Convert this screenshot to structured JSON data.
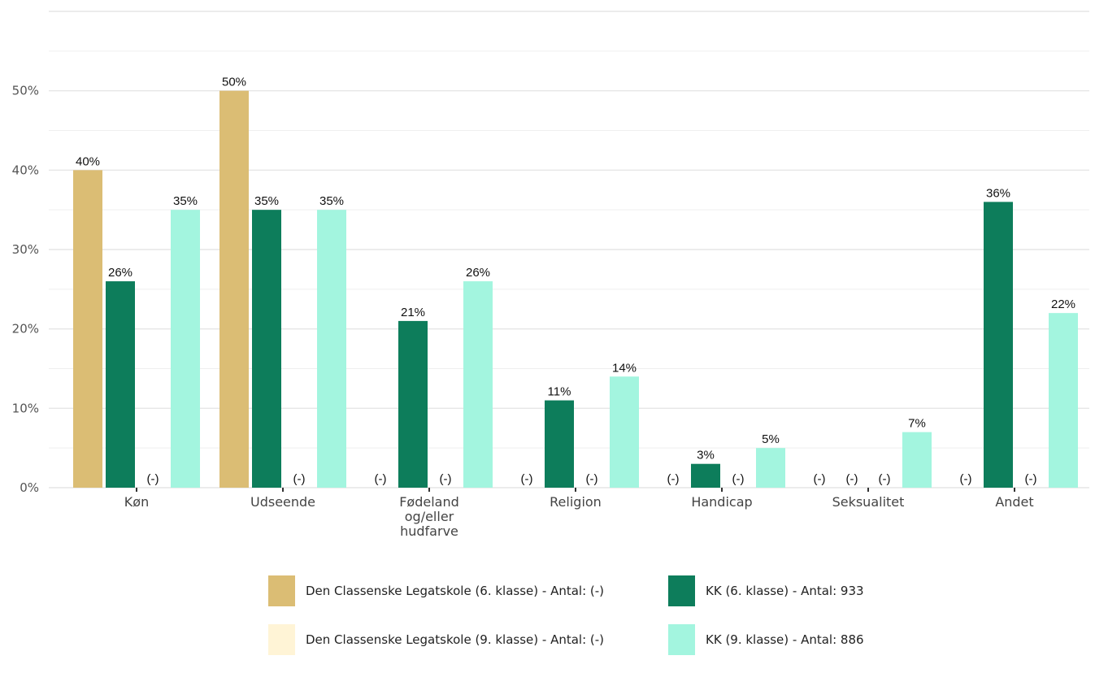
{
  "chart_data": {
    "type": "bar",
    "categories": [
      "Køn",
      "Udseende",
      "Fødeland og/eller hudfarve",
      "Religion",
      "Handicap",
      "Seksualitet",
      "Andet"
    ],
    "category_lines": [
      [
        "Køn"
      ],
      [
        "Udseende"
      ],
      [
        "Fødeland",
        "og/eller",
        "hudfarve"
      ],
      [
        "Religion"
      ],
      [
        "Handicap"
      ],
      [
        "Seksualitet"
      ],
      [
        "Andet"
      ]
    ],
    "series": [
      {
        "name": "Den Classenske Legatskole (6. klasse) - Antal: (-)",
        "color": "#dbbd74",
        "values": [
          40,
          50,
          null,
          null,
          null,
          null,
          null
        ]
      },
      {
        "name": "KK (6. klasse) - Antal: 933",
        "color": "#0d7d5b",
        "values": [
          26,
          35,
          21,
          11,
          3,
          null,
          36
        ]
      },
      {
        "name": "Den Classenske Legatskole (9. klasse) - Antal: (-)",
        "color": "#fff4d6",
        "values": [
          null,
          null,
          null,
          null,
          null,
          null,
          null
        ]
      },
      {
        "name": "KK (9. klasse) - Antal: 886",
        "color": "#a3f5df",
        "values": [
          35,
          35,
          26,
          14,
          5,
          7,
          22
        ]
      }
    ],
    "missing_label": "(-)",
    "ylim": [
      0,
      60
    ],
    "yticks": [
      0,
      10,
      20,
      30,
      40,
      50
    ],
    "ytick_labels": [
      "0%",
      "10%",
      "20%",
      "30%",
      "40%",
      "50%"
    ],
    "value_suffix": "%",
    "grid": true,
    "legend_position": "bottom",
    "xlabel": "",
    "ylabel": "",
    "title": ""
  },
  "legend": {
    "rows": [
      [
        {
          "label": "Den Classenske Legatskole (6. klasse) - Antal: (-)",
          "color": "#dbbd74"
        },
        {
          "label": "KK (6. klasse) - Antal: 933",
          "color": "#0d7d5b"
        }
      ],
      [
        {
          "label": "Den Classenske Legatskole (9. klasse) - Antal: (-)",
          "color": "#fff4d6"
        },
        {
          "label": "KK (9. klasse) - Antal: 886",
          "color": "#a3f5df"
        }
      ]
    ]
  }
}
